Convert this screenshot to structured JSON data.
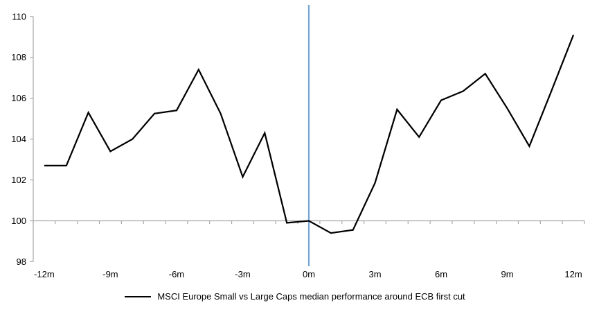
{
  "chart_data": {
    "type": "line",
    "legend": "MSCI Europe Small vs Large Caps median performance around ECB first cut",
    "legend_position": "bottom",
    "x": [
      -12,
      -11,
      -10,
      -9,
      -8,
      -7,
      -6,
      -5,
      -4,
      -3,
      -2,
      -1,
      0,
      1,
      2,
      3,
      4,
      5,
      6,
      7,
      8,
      9,
      10,
      11,
      12
    ],
    "series": [
      {
        "name": "MSCI Europe Small vs Large Caps median performance around ECB first cut",
        "color": "#000000",
        "values": [
          102.7,
          102.7,
          105.3,
          103.4,
          104.0,
          105.25,
          105.4,
          107.4,
          105.25,
          102.15,
          104.3,
          99.9,
          100.0,
          99.4,
          99.55,
          101.85,
          105.45,
          104.1,
          105.9,
          106.35,
          107.2,
          105.5,
          103.65,
          106.35,
          109.1
        ]
      }
    ],
    "x_tick_values": [
      -12,
      -9,
      -6,
      -3,
      0,
      3,
      6,
      9,
      12
    ],
    "x_tick_labels": [
      "-12m",
      "-9m",
      "-6m",
      "-3m",
      "0m",
      "3m",
      "6m",
      "9m",
      "12m"
    ],
    "yticks": [
      98,
      100,
      102,
      104,
      106,
      108,
      110
    ],
    "ytick_labels": [
      "98",
      "100",
      "102",
      "104",
      "106",
      "108",
      "110"
    ],
    "ylim": [
      98,
      110
    ],
    "xlim": [
      -12.5,
      12.5
    ],
    "grid": "horizontal baseline at 100 only",
    "reference_lines": {
      "horizontal_baseline": {
        "value": 100,
        "color": "#A6A6A6"
      },
      "vertical_event_line": {
        "value": 0,
        "color": "#74A5D3"
      }
    },
    "axis_color": "#A6A6A6"
  }
}
